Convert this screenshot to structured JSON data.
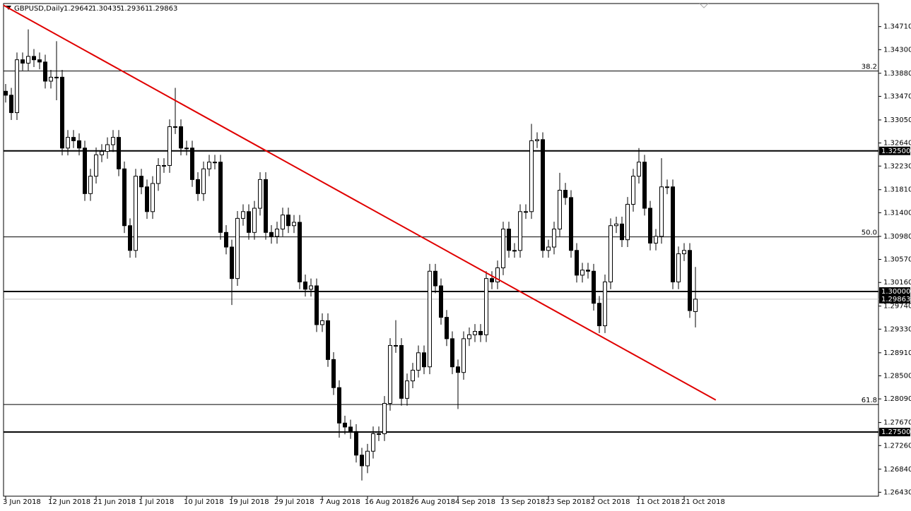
{
  "chart_data": {
    "type": "candlestick",
    "symbol": "GBPUSD,Daily",
    "bull_color": "#ffffff",
    "bear_color": "#000000",
    "outline_color": "#000000",
    "categories": [
      "3 Jun 2018",
      null,
      null,
      null,
      null,
      null,
      null,
      null,
      "12 Jun 2018",
      null,
      null,
      null,
      null,
      null,
      null,
      null,
      "21 Jun 2018",
      null,
      null,
      null,
      null,
      null,
      null,
      null,
      "1 Jul 2018",
      null,
      null,
      null,
      null,
      null,
      null,
      null,
      "10 Jul 2018",
      null,
      null,
      null,
      null,
      null,
      null,
      null,
      "19 Jul 2018",
      null,
      null,
      null,
      null,
      null,
      null,
      null,
      "29 Jul 2018",
      null,
      null,
      null,
      null,
      null,
      null,
      null,
      "7 Aug 2018",
      null,
      null,
      null,
      null,
      null,
      null,
      null,
      "16 Aug 2018",
      null,
      null,
      null,
      null,
      null,
      null,
      null,
      "26 Aug 2018",
      null,
      null,
      null,
      null,
      null,
      null,
      null,
      "4 Sep 2018",
      null,
      null,
      null,
      null,
      null,
      null,
      null,
      "13 Sep 2018",
      null,
      null,
      null,
      null,
      null,
      null,
      null,
      "23 Sep 2018",
      null,
      null,
      null,
      null,
      null,
      null,
      null,
      "2 Oct 2018",
      null,
      null,
      null,
      null,
      null,
      null,
      null,
      "11 Oct 2018",
      null,
      null,
      null,
      null,
      null,
      null,
      null,
      "21 Oct 2018",
      null,
      null
    ],
    "open": [
      1.3356,
      1.3349,
      1.3318,
      1.3412,
      1.3406,
      1.3418,
      1.3412,
      1.3408,
      1.3374,
      1.3381,
      1.3381,
      1.3255,
      1.3274,
      1.3268,
      1.3255,
      1.3174,
      1.3205,
      1.3243,
      1.3249,
      1.3261,
      1.3274,
      1.3218,
      1.3117,
      1.3073,
      1.3205,
      1.3186,
      1.3142,
      1.3192,
      1.3224,
      1.3224,
      1.3293,
      1.3293,
      1.3255,
      1.3255,
      1.3199,
      1.3174,
      1.3218,
      1.323,
      1.323,
      1.3105,
      1.3079,
      1.3023,
      1.313,
      1.3142,
      1.3105,
      1.3148,
      1.3199,
      1.3105,
      1.3098,
      1.3111,
      1.3136,
      1.3117,
      1.3123,
      1.3017,
      1.3004,
      1.301,
      1.2941,
      1.2948,
      1.2879,
      1.2829,
      1.2766,
      1.2759,
      1.2751,
      1.2709,
      1.269,
      1.2716,
      1.2747,
      1.2747,
      1.2801,
      1.2904,
      1.2904,
      1.281,
      1.2841,
      1.286,
      1.2891,
      1.2866,
      1.3036,
      1.301,
      1.2954,
      1.2916,
      1.2866,
      1.2856,
      1.2916,
      1.2923,
      1.2929,
      1.2923,
      1.3023,
      1.3017,
      1.3042,
      1.3111,
      1.3073,
      1.3073,
      1.3142,
      1.3142,
      1.3268,
      1.327,
      1.3073,
      1.3079,
      1.3111,
      1.318,
      1.3167,
      1.3073,
      1.3029,
      1.3038,
      1.3036,
      1.2979,
      1.2939,
      1.3017,
      1.3117,
      1.312,
      1.3092,
      1.3155,
      1.3205,
      1.323,
      1.3148,
      1.3086,
      1.3098,
      1.3186,
      1.3186,
      1.3017,
      1.3067,
      1.3073,
      1.29642
    ],
    "high": [
      1.3369,
      1.3362,
      1.3425,
      1.3425,
      1.3466,
      1.3431,
      1.3425,
      1.3421,
      1.3394,
      1.3445,
      1.3394,
      1.3287,
      1.3287,
      1.3281,
      1.3268,
      1.3218,
      1.3256,
      1.3262,
      1.3274,
      1.3287,
      1.3287,
      1.3231,
      1.313,
      1.3218,
      1.3218,
      1.3199,
      1.3205,
      1.3237,
      1.3237,
      1.3306,
      1.3362,
      1.3306,
      1.3268,
      1.3268,
      1.3212,
      1.3231,
      1.3243,
      1.3243,
      1.3243,
      1.3118,
      1.3092,
      1.3143,
      1.3155,
      1.3155,
      1.3161,
      1.3212,
      1.3212,
      1.3118,
      1.3124,
      1.3149,
      1.3149,
      1.3136,
      1.3136,
      1.303,
      1.3023,
      1.3023,
      1.2961,
      1.2961,
      1.2892,
      1.2842,
      1.2779,
      1.2772,
      1.2764,
      1.2722,
      1.2729,
      1.276,
      1.276,
      1.2814,
      1.2917,
      1.2949,
      1.2917,
      1.2854,
      1.2873,
      1.2904,
      1.2904,
      1.3049,
      1.3049,
      1.3023,
      1.2967,
      1.2929,
      1.2879,
      1.2929,
      1.2936,
      1.2942,
      1.2942,
      1.3036,
      1.3036,
      1.3055,
      1.3124,
      1.3124,
      1.3086,
      1.3155,
      1.3155,
      1.3298,
      1.3283,
      1.3283,
      1.3092,
      1.3124,
      1.3211,
      1.3193,
      1.318,
      1.3086,
      1.3051,
      1.3051,
      1.3049,
      1.2992,
      1.303,
      1.313,
      1.3133,
      1.3133,
      1.3168,
      1.3218,
      1.3255,
      1.3243,
      1.3161,
      1.3111,
      1.3237,
      1.3199,
      1.3199,
      1.308,
      1.3086,
      1.3086,
      1.30435
    ],
    "low": [
      1.3336,
      1.3305,
      1.3305,
      1.3393,
      1.3393,
      1.3399,
      1.3395,
      1.3361,
      1.3361,
      1.334,
      1.3242,
      1.3242,
      1.3255,
      1.3242,
      1.3161,
      1.3161,
      1.3192,
      1.323,
      1.3236,
      1.3248,
      1.3205,
      1.3104,
      1.306,
      1.306,
      1.3173,
      1.3129,
      1.3129,
      1.3179,
      1.3211,
      1.3211,
      1.328,
      1.3242,
      1.3242,
      1.3186,
      1.3161,
      1.3161,
      1.3205,
      1.3217,
      1.3092,
      1.3066,
      1.2976,
      1.301,
      1.3117,
      1.3092,
      1.3092,
      1.3135,
      1.3092,
      1.3085,
      1.3085,
      1.3098,
      1.3104,
      1.3104,
      1.3004,
      1.2991,
      1.2991,
      1.2928,
      1.2928,
      1.2866,
      1.2816,
      1.274,
      1.2746,
      1.2738,
      1.2696,
      1.2664,
      1.2677,
      1.2703,
      1.2734,
      1.2734,
      1.2788,
      1.2891,
      1.2797,
      1.2797,
      1.2828,
      1.2847,
      1.2853,
      1.2853,
      1.2997,
      1.2941,
      1.2903,
      1.2853,
      1.2791,
      1.2843,
      1.2903,
      1.291,
      1.291,
      1.291,
      1.3004,
      1.3004,
      1.3029,
      1.306,
      1.306,
      1.306,
      1.3129,
      1.3129,
      1.3255,
      1.306,
      1.306,
      1.3066,
      1.3098,
      1.3154,
      1.306,
      1.3016,
      1.3016,
      1.3023,
      1.2966,
      1.2926,
      1.2926,
      1.3004,
      1.3104,
      1.3079,
      1.3079,
      1.3142,
      1.3192,
      1.3135,
      1.3073,
      1.3073,
      1.3085,
      1.3173,
      1.3004,
      1.3004,
      1.3054,
      1.2953,
      1.29361
    ],
    "close": [
      1.3349,
      1.3318,
      1.3412,
      1.3406,
      1.3418,
      1.3412,
      1.3408,
      1.3374,
      1.3381,
      1.3381,
      1.3255,
      1.3274,
      1.3268,
      1.3255,
      1.3174,
      1.3205,
      1.3243,
      1.3249,
      1.3261,
      1.3274,
      1.3218,
      1.3117,
      1.3073,
      1.3205,
      1.3186,
      1.3142,
      1.3192,
      1.3224,
      1.3224,
      1.3293,
      1.3293,
      1.3255,
      1.3255,
      1.3199,
      1.3174,
      1.3218,
      1.323,
      1.323,
      1.3105,
      1.3079,
      1.3023,
      1.313,
      1.3142,
      1.3105,
      1.3148,
      1.3199,
      1.3105,
      1.3098,
      1.3111,
      1.3136,
      1.3117,
      1.3123,
      1.3017,
      1.3004,
      1.301,
      1.2941,
      1.2948,
      1.2879,
      1.2829,
      1.2766,
      1.2759,
      1.2751,
      1.2709,
      1.269,
      1.2716,
      1.2747,
      1.2747,
      1.2801,
      1.2904,
      1.2904,
      1.281,
      1.2841,
      1.286,
      1.2891,
      1.2866,
      1.3036,
      1.301,
      1.2954,
      1.2916,
      1.2866,
      1.2856,
      1.2916,
      1.2923,
      1.2929,
      1.2923,
      1.3023,
      1.3017,
      1.3042,
      1.3111,
      1.3073,
      1.3073,
      1.3142,
      1.3142,
      1.3268,
      1.327,
      1.3073,
      1.3079,
      1.3111,
      1.318,
      1.3167,
      1.3073,
      1.3029,
      1.3038,
      1.3036,
      1.2979,
      1.2939,
      1.3017,
      1.3117,
      1.312,
      1.3092,
      1.3155,
      1.3205,
      1.323,
      1.3148,
      1.3086,
      1.3098,
      1.3186,
      1.3186,
      1.3017,
      1.3067,
      1.3073,
      1.2966,
      1.29863
    ],
    "ylim": [
      1.2636,
      1.3512
    ],
    "yticks": [
      {
        "value": 1.3471,
        "label": "1.34710"
      },
      {
        "value": 1.343,
        "label": "1.34300"
      },
      {
        "value": 1.3388,
        "label": "1.33880"
      },
      {
        "value": 1.3347,
        "label": "1.33470"
      },
      {
        "value": 1.3305,
        "label": "1.33050"
      },
      {
        "value": 1.3264,
        "label": "1.32640"
      },
      {
        "value": 1.3223,
        "label": "1.32230"
      },
      {
        "value": 1.3181,
        "label": "1.31810"
      },
      {
        "value": 1.314,
        "label": "1.31400"
      },
      {
        "value": 1.3098,
        "label": "1.30980"
      },
      {
        "value": 1.3057,
        "label": "1.30570"
      },
      {
        "value": 1.3016,
        "label": "1.30160"
      },
      {
        "value": 1.2974,
        "label": "1.29740"
      },
      {
        "value": 1.2933,
        "label": "1.29330"
      },
      {
        "value": 1.2891,
        "label": "1.28910"
      },
      {
        "value": 1.285,
        "label": "1.28500"
      },
      {
        "value": 1.2809,
        "label": "1.28090"
      },
      {
        "value": 1.2767,
        "label": "1.27670"
      },
      {
        "value": 1.2726,
        "label": "1.27260"
      },
      {
        "value": 1.2684,
        "label": "1.26840"
      },
      {
        "value": 1.2643,
        "label": "1.26430"
      }
    ],
    "fib_levels": [
      {
        "value": 1.3392,
        "label": "38.2"
      },
      {
        "value": 1.3097,
        "label": "50.0"
      },
      {
        "value": 1.2799,
        "label": "61.8"
      }
    ],
    "levels": [
      {
        "value": 1.325,
        "label": "1.32500"
      },
      {
        "value": 1.3,
        "label": "1.30000"
      },
      {
        "value": 1.275,
        "label": "1.27500"
      }
    ],
    "last_price": {
      "value": 1.29863,
      "label": "1.29863"
    },
    "trendline": {
      "color": "#e00000",
      "start": [
        -0.4,
        1.3509
      ],
      "end": [
        125.6,
        1.2807
      ]
    }
  }
}
